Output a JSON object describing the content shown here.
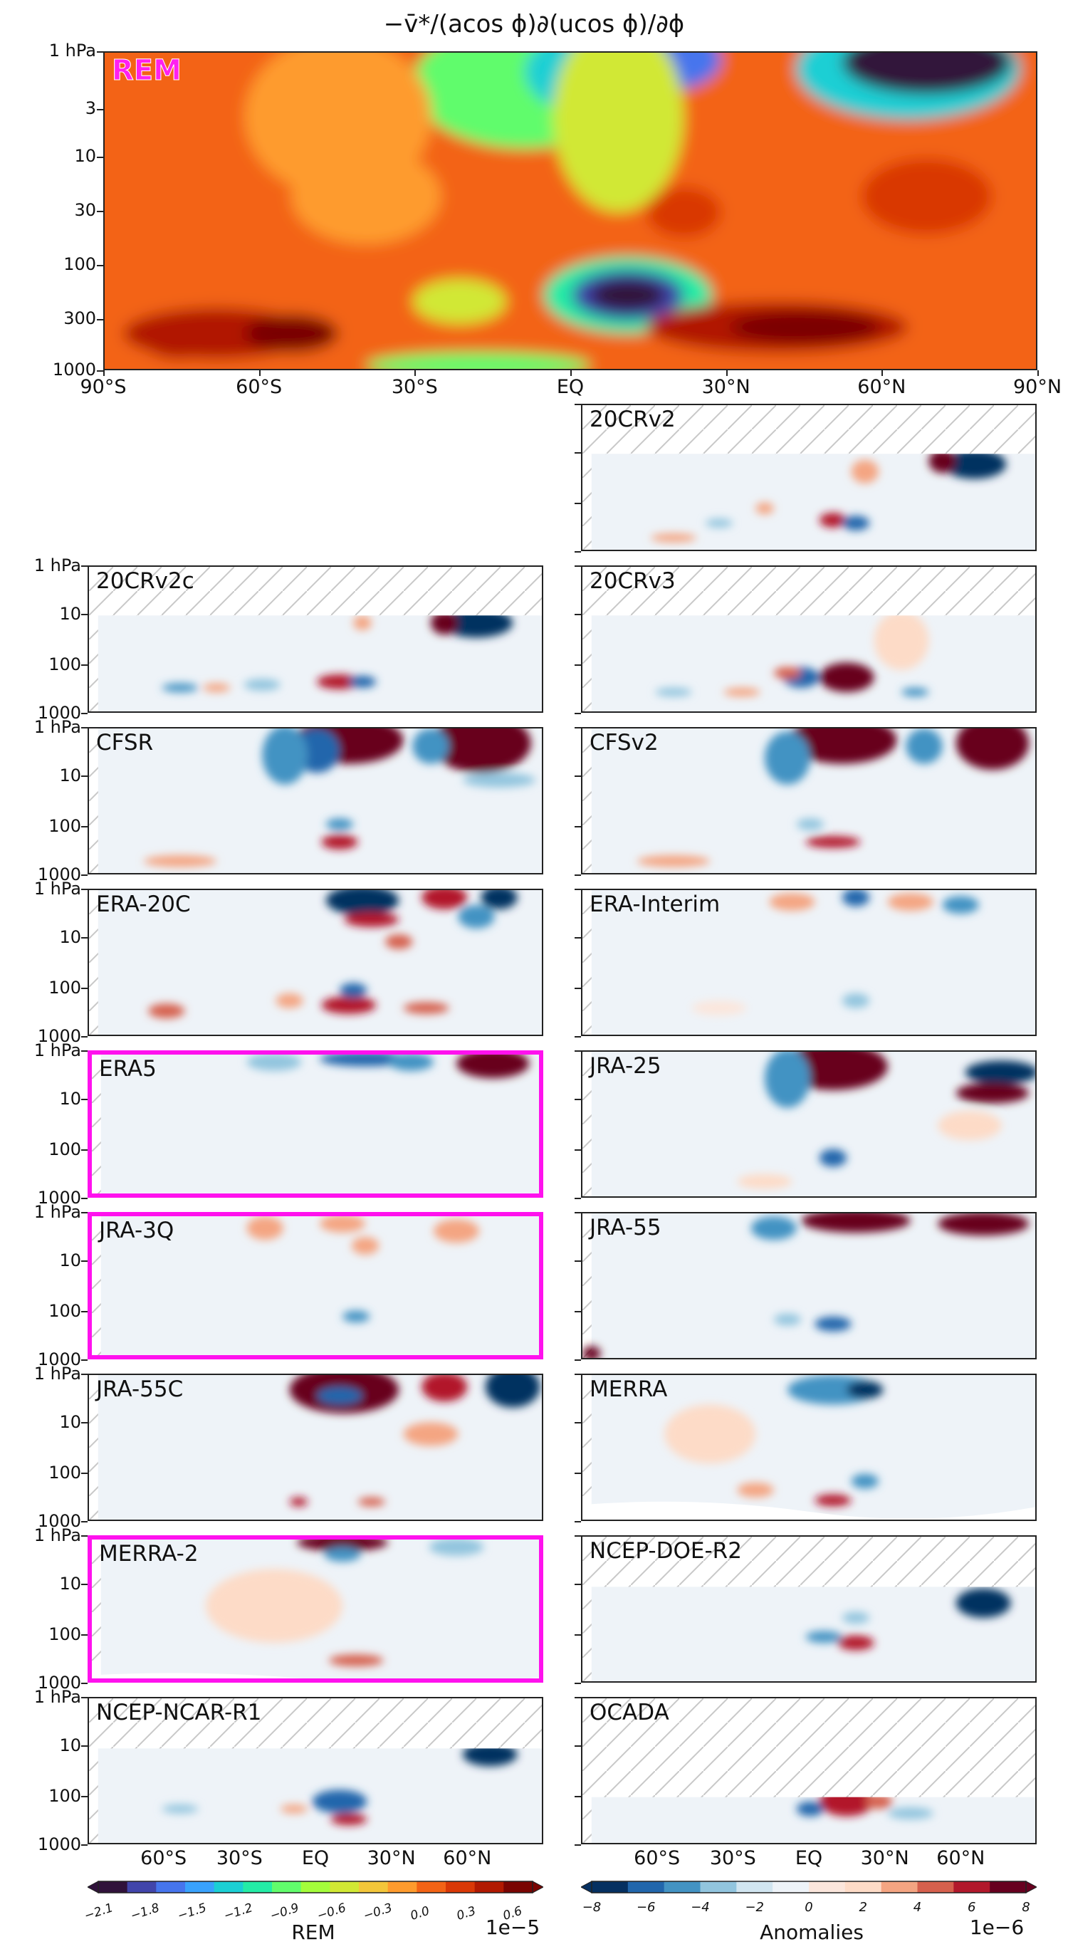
{
  "figure": {
    "title": "−v̄*/(acos ϕ)∂(ucos ϕ)/∂ϕ"
  },
  "colors": {
    "highlight_border": "#ff11ee",
    "rem_label": "#ff20f0",
    "hatch": "#c8c8c8"
  },
  "axes": {
    "y_ticks_top": [
      "1 hPa",
      "3",
      "10",
      "30",
      "100",
      "300",
      "1000"
    ],
    "y_ticks_small": [
      "1 hPa",
      "10",
      "100",
      "1000"
    ],
    "x_ticks_top": [
      "90°S",
      "60°S",
      "30°S",
      "EQ",
      "30°N",
      "60°N",
      "90°N"
    ],
    "x_ticks_bottom": [
      "60°S",
      "30°S",
      "EQ",
      "30°N",
      "60°N"
    ]
  },
  "panels": [
    {
      "name": "REM",
      "highlight": false
    },
    {
      "name": "20CRv2",
      "highlight": false
    },
    {
      "name": "20CRv2c",
      "highlight": false
    },
    {
      "name": "20CRv3",
      "highlight": false
    },
    {
      "name": "CFSR",
      "highlight": false
    },
    {
      "name": "CFSv2",
      "highlight": false
    },
    {
      "name": "ERA-20C",
      "highlight": false
    },
    {
      "name": "ERA-Interim",
      "highlight": false
    },
    {
      "name": "ERA5",
      "highlight": true
    },
    {
      "name": "JRA-25",
      "highlight": false
    },
    {
      "name": "JRA-3Q",
      "highlight": true
    },
    {
      "name": "JRA-55",
      "highlight": false
    },
    {
      "name": "JRA-55C",
      "highlight": false
    },
    {
      "name": "MERRA",
      "highlight": false
    },
    {
      "name": "MERRA-2",
      "highlight": true
    },
    {
      "name": "NCEP-DOE-R2",
      "highlight": false
    },
    {
      "name": "NCEP-NCAR-R1",
      "highlight": false
    },
    {
      "name": "OCADA",
      "highlight": false
    }
  ],
  "colorbars": {
    "rem": {
      "ticks": [
        "−2.1",
        "−1.8",
        "−1.5",
        "−1.2",
        "−0.9",
        "−0.6",
        "−0.3",
        "0.0",
        "0.3",
        "0.6"
      ],
      "label": "REM",
      "scale": "1e−5",
      "colors": [
        "#30123b",
        "#4145ab",
        "#4675ed",
        "#39a2fc",
        "#1bcfd4",
        "#24eca6",
        "#61fc6c",
        "#a4fc3b",
        "#d1e834",
        "#f3c63a",
        "#fe9b2d",
        "#f36315",
        "#d93806",
        "#b11901",
        "#7a0402"
      ]
    },
    "anom": {
      "ticks": [
        "−8",
        "−6",
        "−4",
        "−2",
        "0",
        "2",
        "4",
        "6",
        "8"
      ],
      "label": "Anomalies",
      "scale": "1e−6",
      "colors": [
        "#053061",
        "#2166ac",
        "#4393c3",
        "#92c5de",
        "#d1e5f0",
        "#eef3f8",
        "#fbe6dc",
        "#fddbc7",
        "#f4a582",
        "#d6604d",
        "#b2182b",
        "#67001f"
      ]
    }
  },
  "chart_data": {
    "type": "heatmap",
    "title": "−v̄*/(acos ϕ)∂(ucos ϕ)/∂ϕ",
    "x_axis": {
      "label": "",
      "range_deg": [
        -90,
        90
      ],
      "ticks": [
        "90°S",
        "60°S",
        "30°S",
        "EQ",
        "30°N",
        "60°N",
        "90°N"
      ]
    },
    "y_axis": {
      "label": "",
      "unit": "hPa",
      "scale": "log",
      "range": [
        1000,
        1
      ]
    },
    "panels": [
      "REM",
      "20CRv2",
      "20CRv2c",
      "20CRv3",
      "CFSR",
      "CFSv2",
      "ERA-20C",
      "ERA-Interim",
      "ERA5",
      "JRA-25",
      "JRA-3Q",
      "JRA-55",
      "JRA-55C",
      "MERRA",
      "MERRA-2",
      "NCEP-DOE-R2",
      "NCEP-NCAR-R1",
      "OCADA"
    ],
    "colorbar_rem": {
      "label": "REM",
      "scale": "1e−5",
      "range": [
        -2.1,
        0.7
      ]
    },
    "colorbar_anomalies": {
      "label": "Anomalies",
      "scale": "1e−6",
      "range": [
        -8,
        8
      ]
    }
  }
}
